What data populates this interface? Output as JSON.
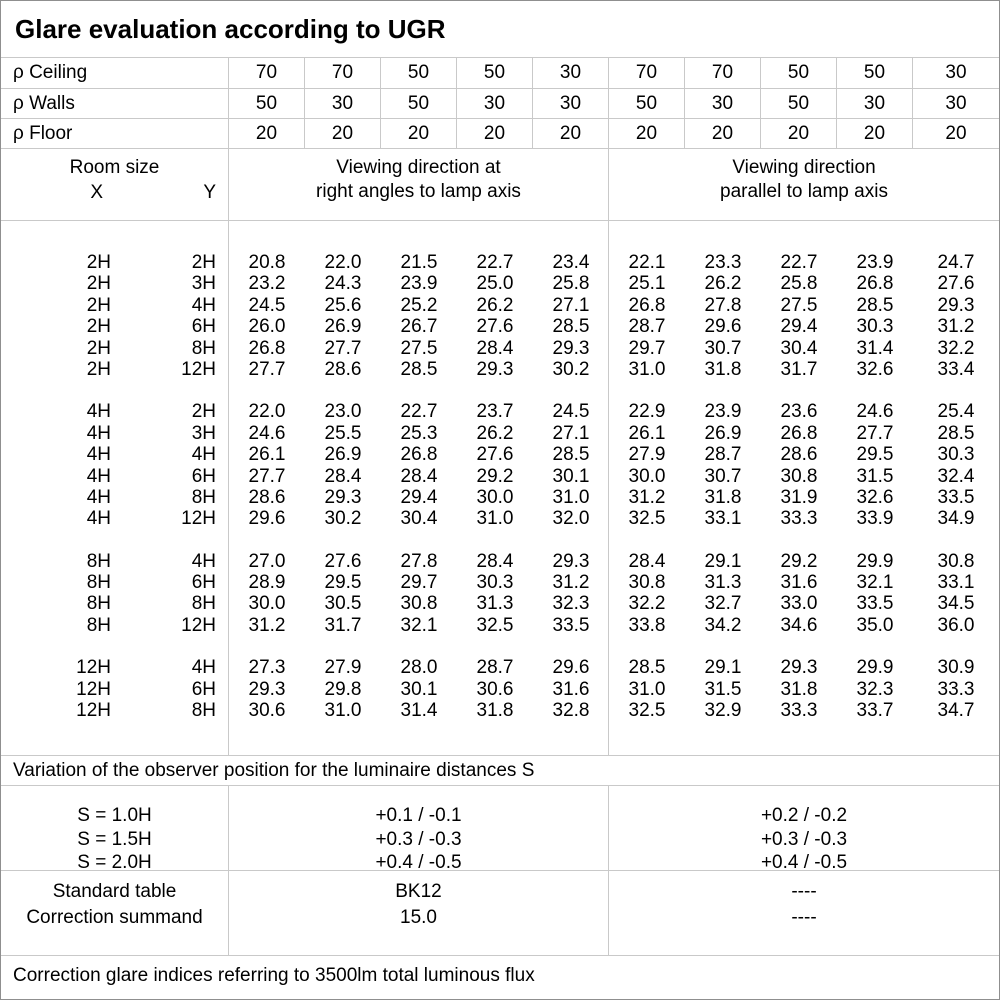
{
  "title": "Glare evaluation according to UGR",
  "colors": {
    "grid": "#c9c9c9",
    "border": "#8f8f8f",
    "text": "#000000",
    "background": "#ffffff"
  },
  "reflectance_rows": [
    {
      "label": "ρ Ceiling",
      "values": [
        "70",
        "70",
        "50",
        "50",
        "30",
        "70",
        "70",
        "50",
        "50",
        "30"
      ]
    },
    {
      "label": "ρ Walls",
      "values": [
        "50",
        "30",
        "50",
        "30",
        "30",
        "50",
        "30",
        "50",
        "30",
        "30"
      ]
    },
    {
      "label": "ρ Floor",
      "values": [
        "20",
        "20",
        "20",
        "20",
        "20",
        "20",
        "20",
        "20",
        "20",
        "20"
      ]
    }
  ],
  "room_header": {
    "label": "Room size",
    "x": "X",
    "y": "Y",
    "group1_lines": [
      "Viewing direction at",
      "right angles to lamp axis"
    ],
    "group2_lines": [
      "Viewing direction",
      "parallel to lamp axis"
    ]
  },
  "ugr_blocks": [
    {
      "rows": [
        {
          "x": "2H",
          "y": "2H",
          "values": [
            "20.8",
            "22.0",
            "21.5",
            "22.7",
            "23.4",
            "22.1",
            "23.3",
            "22.7",
            "23.9",
            "24.7"
          ]
        },
        {
          "x": "2H",
          "y": "3H",
          "values": [
            "23.2",
            "24.3",
            "23.9",
            "25.0",
            "25.8",
            "25.1",
            "26.2",
            "25.8",
            "26.8",
            "27.6"
          ]
        },
        {
          "x": "2H",
          "y": "4H",
          "values": [
            "24.5",
            "25.6",
            "25.2",
            "26.2",
            "27.1",
            "26.8",
            "27.8",
            "27.5",
            "28.5",
            "29.3"
          ]
        },
        {
          "x": "2H",
          "y": "6H",
          "values": [
            "26.0",
            "26.9",
            "26.7",
            "27.6",
            "28.5",
            "28.7",
            "29.6",
            "29.4",
            "30.3",
            "31.2"
          ]
        },
        {
          "x": "2H",
          "y": "8H",
          "values": [
            "26.8",
            "27.7",
            "27.5",
            "28.4",
            "29.3",
            "29.7",
            "30.7",
            "30.4",
            "31.4",
            "32.2"
          ]
        },
        {
          "x": "2H",
          "y": "12H",
          "values": [
            "27.7",
            "28.6",
            "28.5",
            "29.3",
            "30.2",
            "31.0",
            "31.8",
            "31.7",
            "32.6",
            "33.4"
          ]
        }
      ]
    },
    {
      "rows": [
        {
          "x": "4H",
          "y": "2H",
          "values": [
            "22.0",
            "23.0",
            "22.7",
            "23.7",
            "24.5",
            "22.9",
            "23.9",
            "23.6",
            "24.6",
            "25.4"
          ]
        },
        {
          "x": "4H",
          "y": "3H",
          "values": [
            "24.6",
            "25.5",
            "25.3",
            "26.2",
            "27.1",
            "26.1",
            "26.9",
            "26.8",
            "27.7",
            "28.5"
          ]
        },
        {
          "x": "4H",
          "y": "4H",
          "values": [
            "26.1",
            "26.9",
            "26.8",
            "27.6",
            "28.5",
            "27.9",
            "28.7",
            "28.6",
            "29.5",
            "30.3"
          ]
        },
        {
          "x": "4H",
          "y": "6H",
          "values": [
            "27.7",
            "28.4",
            "28.4",
            "29.2",
            "30.1",
            "30.0",
            "30.7",
            "30.8",
            "31.5",
            "32.4"
          ]
        },
        {
          "x": "4H",
          "y": "8H",
          "values": [
            "28.6",
            "29.3",
            "29.4",
            "30.0",
            "31.0",
            "31.2",
            "31.8",
            "31.9",
            "32.6",
            "33.5"
          ]
        },
        {
          "x": "4H",
          "y": "12H",
          "values": [
            "29.6",
            "30.2",
            "30.4",
            "31.0",
            "32.0",
            "32.5",
            "33.1",
            "33.3",
            "33.9",
            "34.9"
          ]
        }
      ]
    },
    {
      "rows": [
        {
          "x": "8H",
          "y": "4H",
          "values": [
            "27.0",
            "27.6",
            "27.8",
            "28.4",
            "29.3",
            "28.4",
            "29.1",
            "29.2",
            "29.9",
            "30.8"
          ]
        },
        {
          "x": "8H",
          "y": "6H",
          "values": [
            "28.9",
            "29.5",
            "29.7",
            "30.3",
            "31.2",
            "30.8",
            "31.3",
            "31.6",
            "32.1",
            "33.1"
          ]
        },
        {
          "x": "8H",
          "y": "8H",
          "values": [
            "30.0",
            "30.5",
            "30.8",
            "31.3",
            "32.3",
            "32.2",
            "32.7",
            "33.0",
            "33.5",
            "34.5"
          ]
        },
        {
          "x": "8H",
          "y": "12H",
          "values": [
            "31.2",
            "31.7",
            "32.1",
            "32.5",
            "33.5",
            "33.8",
            "34.2",
            "34.6",
            "35.0",
            "36.0"
          ]
        }
      ]
    },
    {
      "rows": [
        {
          "x": "12H",
          "y": "4H",
          "values": [
            "27.3",
            "27.9",
            "28.0",
            "28.7",
            "29.6",
            "28.5",
            "29.1",
            "29.3",
            "29.9",
            "30.9"
          ]
        },
        {
          "x": "12H",
          "y": "6H",
          "values": [
            "29.3",
            "29.8",
            "30.1",
            "30.6",
            "31.6",
            "31.0",
            "31.5",
            "31.8",
            "32.3",
            "33.3"
          ]
        },
        {
          "x": "12H",
          "y": "8H",
          "values": [
            "30.6",
            "31.0",
            "31.4",
            "31.8",
            "32.8",
            "32.5",
            "32.9",
            "33.3",
            "33.7",
            "34.7"
          ]
        }
      ]
    }
  ],
  "variation_note": "Variation of the observer position for the luminaire distances S",
  "variation_rows": [
    {
      "label": "S = 1.0H",
      "right_angles": "+0.1 / -0.1",
      "parallel": "+0.2 / -0.2"
    },
    {
      "label": "S = 1.5H",
      "right_angles": "+0.3 / -0.3",
      "parallel": "+0.3 / -0.3"
    },
    {
      "label": "S = 2.0H",
      "right_angles": "+0.4 / -0.5",
      "parallel": "+0.4 / -0.5"
    }
  ],
  "summary_rows": [
    {
      "label": "Standard table",
      "right_angles": "BK12",
      "parallel": "----"
    },
    {
      "label": "Correction summand",
      "right_angles": "15.0",
      "parallel": "----"
    }
  ],
  "footer": "Correction glare indices referring to 3500lm total luminous flux"
}
